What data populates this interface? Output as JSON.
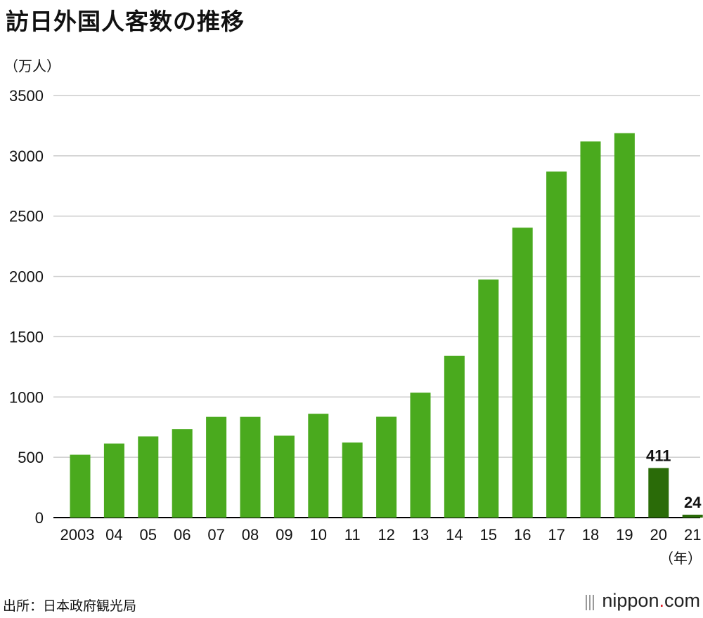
{
  "title": "訪日外国人客数の推移",
  "unit_label": "（万人）",
  "source": "出所：日本政府観光局",
  "brand": {
    "name": "nippon",
    "dot": ".",
    "tld": "com"
  },
  "colors": {
    "bar": "#4aaa1e",
    "highlight": "#2a6b08",
    "grid": "#cccccc",
    "axis": "#000000",
    "brand_dot": "#e0161e"
  },
  "chart_data": {
    "type": "bar",
    "title": "訪日外国人客数の推移",
    "ylabel": "（万人）",
    "xlabel": "（年）",
    "ylim": [
      0,
      3500
    ],
    "yticks": [
      0,
      500,
      1000,
      1500,
      2000,
      2500,
      3000,
      3500
    ],
    "categories": [
      "2003",
      "04",
      "05",
      "06",
      "07",
      "08",
      "09",
      "10",
      "11",
      "12",
      "13",
      "14",
      "15",
      "16",
      "17",
      "18",
      "19",
      "20",
      "21"
    ],
    "values": [
      521,
      614,
      673,
      733,
      835,
      835,
      679,
      861,
      622,
      836,
      1036,
      1341,
      1974,
      2404,
      2869,
      3119,
      3188,
      411,
      24
    ],
    "highlight": [
      false,
      false,
      false,
      false,
      false,
      false,
      false,
      false,
      false,
      false,
      false,
      false,
      false,
      false,
      false,
      false,
      false,
      true,
      true
    ],
    "data_labels": [
      {
        "index": 17,
        "text": "411"
      },
      {
        "index": 18,
        "text": "24"
      }
    ]
  }
}
